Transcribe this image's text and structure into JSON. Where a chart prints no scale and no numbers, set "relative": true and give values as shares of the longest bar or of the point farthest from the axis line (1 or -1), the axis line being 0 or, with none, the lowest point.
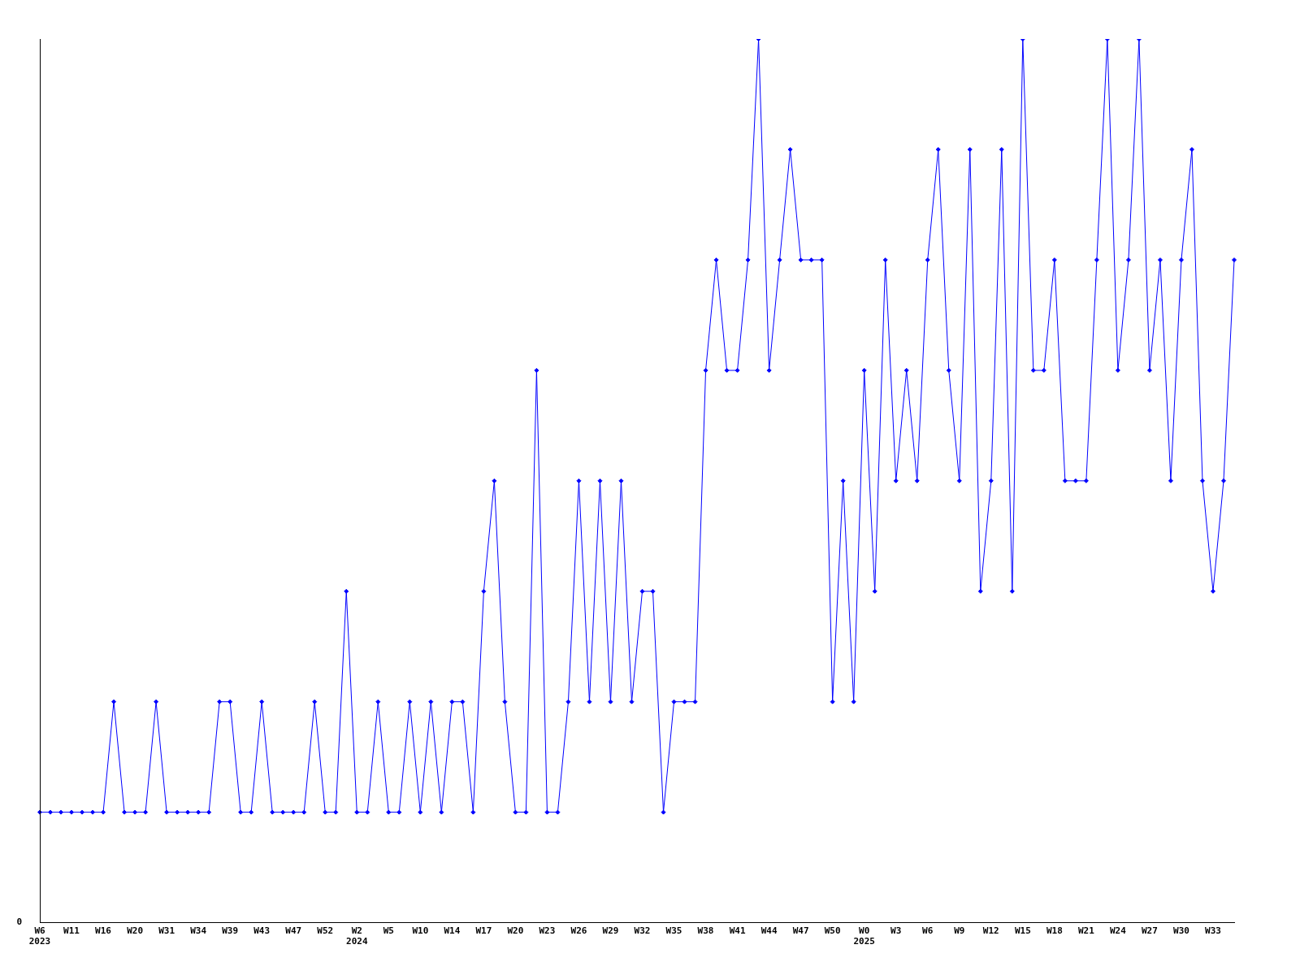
{
  "chart_data": {
    "type": "line",
    "relative": true,
    "legend": false,
    "grid": false,
    "marker": "diamond",
    "categories": [
      "W6\n2023",
      null,
      null,
      "W11",
      null,
      null,
      "W16",
      null,
      null,
      "W20",
      null,
      null,
      "W31",
      null,
      null,
      "W34",
      null,
      null,
      "W39",
      null,
      null,
      "W43",
      null,
      null,
      "W47",
      null,
      null,
      "W52",
      null,
      null,
      "W2\n2024",
      null,
      null,
      "W5",
      null,
      null,
      "W10",
      null,
      null,
      "W14",
      null,
      null,
      "W17",
      null,
      null,
      "W20",
      null,
      null,
      "W23",
      null,
      null,
      "W26",
      null,
      null,
      "W29",
      null,
      null,
      "W32",
      null,
      null,
      "W35",
      null,
      null,
      "W38",
      null,
      null,
      "W41",
      null,
      null,
      "W44",
      null,
      null,
      "W47",
      null,
      null,
      "W50",
      null,
      null,
      "W0\n2025",
      null,
      null,
      "W3",
      null,
      null,
      "W6",
      null,
      null,
      "W9",
      null,
      null,
      "W12",
      null,
      null,
      "W15",
      null,
      null,
      "W18",
      null,
      null,
      "W21",
      null,
      null,
      "W24",
      null,
      null,
      "W27",
      null,
      null,
      "W30",
      null,
      null,
      "W33",
      null,
      null
    ],
    "series": [
      {
        "color": "#0000ff",
        "values": [
          0.125,
          0.125,
          0.125,
          0.125,
          0.125,
          0.125,
          0.125,
          0.25,
          0.125,
          0.125,
          0.125,
          0.25,
          0.125,
          0.125,
          0.125,
          0.125,
          0.125,
          0.25,
          0.25,
          0.125,
          0.125,
          0.25,
          0.125,
          0.125,
          0.125,
          0.125,
          0.25,
          0.125,
          0.125,
          0.375,
          0.125,
          0.125,
          0.25,
          0.125,
          0.125,
          0.25,
          0.125,
          0.25,
          0.125,
          0.25,
          0.25,
          0.125,
          0.375,
          0.5,
          0.25,
          0.125,
          0.125,
          0.625,
          0.125,
          0.125,
          0.25,
          0.5,
          0.25,
          0.5,
          0.25,
          0.5,
          0.25,
          0.375,
          0.375,
          0.125,
          0.25,
          0.25,
          0.25,
          0.625,
          0.75,
          0.625,
          0.625,
          0.75,
          1,
          0.625,
          0.75,
          0.875,
          0.75,
          0.75,
          0.75,
          0.25,
          0.5,
          0.25,
          0.625,
          0.375,
          0.75,
          0.5,
          0.625,
          0.5,
          0.75,
          0.875,
          0.625,
          0.5,
          0.875,
          0.375,
          0.5,
          0.875,
          0.375,
          1,
          0.625,
          0.625,
          0.75,
          0.5,
          0.5,
          0.5,
          0.75,
          1,
          0.625,
          0.75,
          1,
          0.625,
          0.75,
          0.5,
          0.75,
          0.875,
          0.5,
          0.375,
          0.5,
          0.75
        ]
      }
    ],
    "annotations": [
      "0"
    ]
  }
}
